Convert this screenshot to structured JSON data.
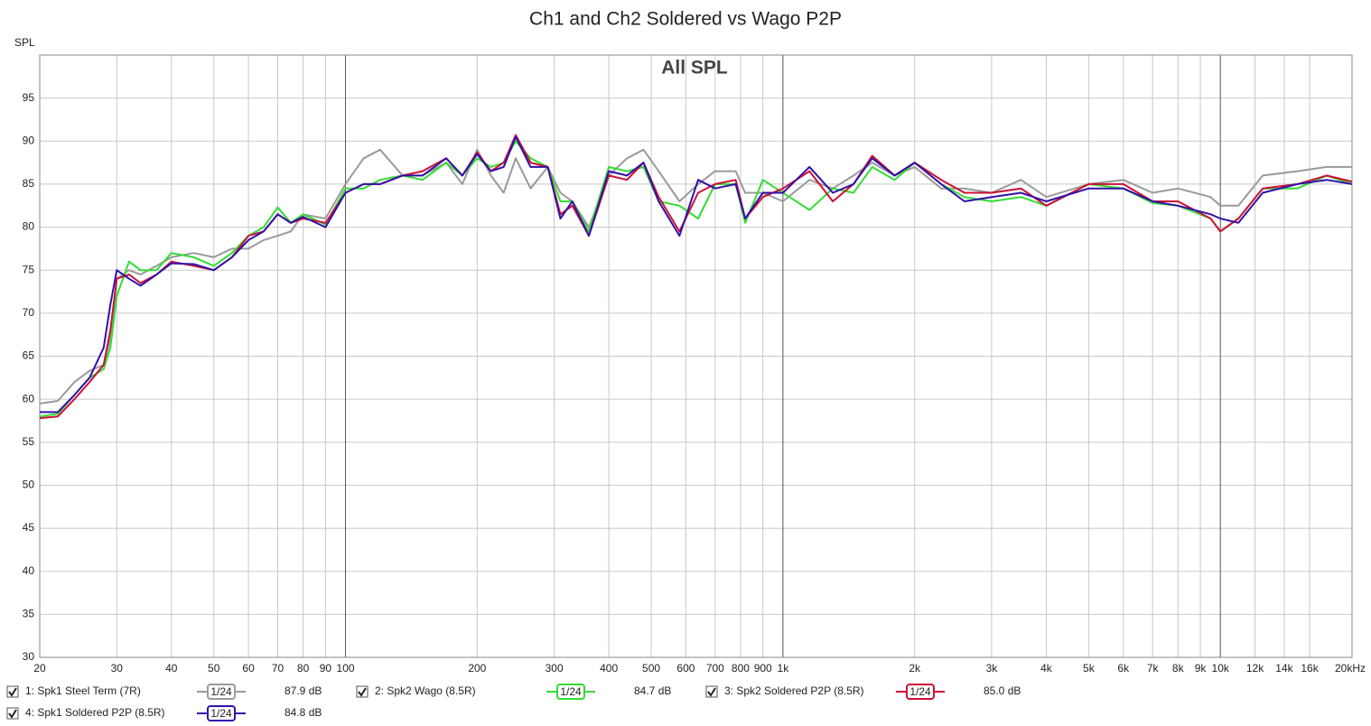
{
  "chart_data": {
    "type": "line",
    "title": "Ch1 and Ch2 Soldered vs Wago P2P",
    "subtitle": "All SPL",
    "y_label": "SPL",
    "xscale": "log",
    "grid": true,
    "xlim": [
      20,
      20000
    ],
    "ylim": [
      30,
      100
    ],
    "yticks": [
      30,
      35,
      40,
      45,
      50,
      55,
      60,
      65,
      70,
      75,
      80,
      85,
      90,
      95
    ],
    "xticks": [
      20,
      30,
      40,
      50,
      60,
      70,
      80,
      90,
      100,
      200,
      300,
      400,
      500,
      600,
      700,
      800,
      900,
      {
        "value": 1000,
        "label": "1k"
      },
      {
        "value": 2000,
        "label": "2k"
      },
      {
        "value": 3000,
        "label": "3k"
      },
      {
        "value": 4000,
        "label": "4k"
      },
      {
        "value": 5000,
        "label": "5k"
      },
      {
        "value": 6000,
        "label": "6k"
      },
      {
        "value": 7000,
        "label": "7k"
      },
      {
        "value": 8000,
        "label": "8k"
      },
      {
        "value": 9000,
        "label": "9k"
      },
      {
        "value": 10000,
        "label": "10k"
      },
      {
        "value": 12000,
        "label": "12k"
      },
      {
        "value": 14000,
        "label": "14k"
      },
      {
        "value": 16000,
        "label": "16k"
      },
      {
        "value": 20000,
        "label": "20kHz"
      }
    ],
    "x": [
      20,
      22,
      24,
      26,
      28,
      29,
      30,
      32,
      34,
      37,
      40,
      45,
      50,
      55,
      60,
      65,
      70,
      75,
      80,
      90,
      100,
      110,
      120,
      135,
      150,
      170,
      185,
      200,
      215,
      230,
      245,
      265,
      290,
      310,
      330,
      360,
      400,
      440,
      480,
      520,
      580,
      640,
      700,
      780,
      820,
      900,
      1000,
      1150,
      1300,
      1450,
      1600,
      1800,
      2000,
      2300,
      2600,
      3000,
      3500,
      4000,
      5000,
      6000,
      7000,
      8000,
      9500,
      10000,
      11000,
      12500,
      15000,
      17500,
      20000
    ],
    "series": [
      {
        "name": "1: Spk1 Steel Term (7R)",
        "color": "#9a9a9a",
        "smoothing": "1/24",
        "level": "87.9 dB",
        "values": [
          59.5,
          59.8,
          62,
          63.3,
          64,
          67,
          74,
          75,
          74.5,
          75.5,
          76.5,
          77,
          76.5,
          77.5,
          77.5,
          78.5,
          79,
          79.5,
          81.5,
          81,
          85,
          88,
          89,
          86,
          86,
          87.5,
          85,
          89,
          86,
          84,
          88,
          84.5,
          87,
          84,
          83,
          80,
          86,
          88,
          89,
          86.5,
          83,
          85,
          86.5,
          86.5,
          84,
          84,
          83,
          85.5,
          84.5,
          86,
          87.5,
          86,
          87,
          84.5,
          84.5,
          84,
          85.5,
          83.5,
          85,
          85.5,
          84,
          84.5,
          83.5,
          82.5,
          82.5,
          86,
          86.5,
          87,
          87
        ]
      },
      {
        "name": "2: Spk2 Wago (8.5R)",
        "color": "#33dd33",
        "smoothing": "1/24",
        "level": "84.7 dB",
        "values": [
          58,
          58.3,
          60.5,
          62.5,
          63.5,
          66,
          72,
          76,
          75,
          75,
          77,
          76.5,
          75.5,
          77,
          79,
          80,
          82.3,
          80.5,
          81.5,
          80.3,
          84.5,
          84.5,
          85.5,
          86,
          85.5,
          87.5,
          86,
          88,
          87,
          87.5,
          90,
          88,
          87,
          83,
          83,
          79.5,
          87,
          86.5,
          87,
          83,
          82.5,
          81,
          85,
          85,
          80.5,
          85.5,
          84,
          82,
          84.5,
          84,
          87,
          85.5,
          87.5,
          85,
          83.5,
          83,
          83.5,
          82.5,
          85,
          84.5,
          82.8,
          82.5,
          81,
          79.5,
          81,
          84.5,
          84.5,
          86,
          85
        ]
      },
      {
        "name": "3: Spk2 Soldered P2P (8.5R)",
        "color": "#cc1133",
        "smoothing": "1/24",
        "level": "85.0 dB",
        "values": [
          57.8,
          58,
          60,
          62,
          64,
          68,
          74,
          74.5,
          73.5,
          74.5,
          76,
          75.5,
          75,
          76.5,
          79,
          79.5,
          81.5,
          80.5,
          81,
          80.5,
          84,
          85,
          85,
          86,
          86.5,
          88,
          86,
          88.7,
          86.5,
          87.5,
          90.7,
          87.5,
          87,
          81.5,
          82.5,
          79,
          86,
          85.5,
          87.5,
          83.5,
          79.5,
          84,
          85,
          85.5,
          81,
          83.5,
          84.5,
          86.5,
          83,
          85,
          88.3,
          86,
          87.5,
          85.5,
          84,
          84,
          84.5,
          82.5,
          85,
          85,
          83,
          83,
          81,
          79.5,
          81,
          84.5,
          85,
          86,
          85.3
        ]
      },
      {
        "name": "4: Spk1 Soldered P2P (8.5R)",
        "color": "#3311aa",
        "smoothing": "1/24",
        "level": "84.8 dB",
        "values": [
          58.5,
          58.5,
          60.5,
          62.5,
          66,
          71,
          75,
          74,
          73.2,
          74.5,
          75.8,
          75.7,
          75,
          76.5,
          78.5,
          79.5,
          81.5,
          80.5,
          81.2,
          80,
          84,
          85,
          85,
          86,
          86,
          88,
          86,
          88.5,
          86.5,
          87,
          90.5,
          87,
          87,
          81,
          83,
          79,
          86.5,
          86,
          87.5,
          83,
          79,
          85.5,
          84.5,
          85,
          81,
          84,
          84,
          87,
          84,
          85,
          88,
          86,
          87.5,
          85,
          83,
          83.5,
          84,
          83,
          84.5,
          84.5,
          83,
          82.5,
          81.5,
          81,
          80.5,
          84,
          85,
          85.5,
          85
        ]
      }
    ]
  }
}
